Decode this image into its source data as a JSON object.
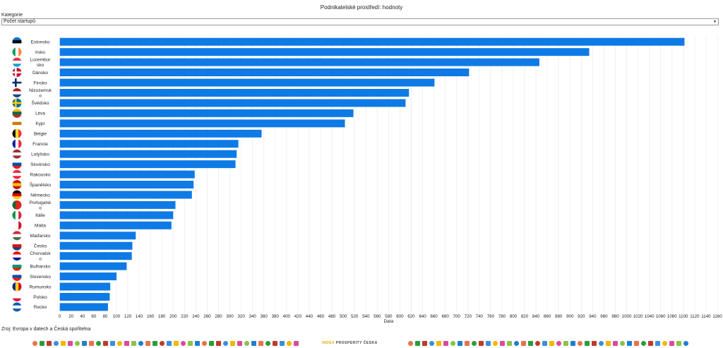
{
  "header": {
    "title": "Podnikatelské prostředí: hodnoty"
  },
  "filter": {
    "label": "Kategorie",
    "selected": "Počet startupů"
  },
  "chart_data": {
    "type": "bar",
    "orientation": "horizontal",
    "xlabel": "Data",
    "xlim": [
      0,
      1160
    ],
    "grid": true,
    "bar_color": "#0e7ae6",
    "categories": [
      "Estonsko",
      "Irsko",
      "Lucembursko",
      "Dánsko",
      "Finsko",
      "Nizozemsko",
      "Švédsko",
      "Litva",
      "Kypr",
      "Belgie",
      "Francie",
      "Lotyšsko",
      "Slovinsko",
      "Rakousko",
      "Španělsko",
      "Německo",
      "Portugalsko",
      "Itálie",
      "Malta",
      "Maďarsko",
      "Česko",
      "Chorvatsko",
      "Bulharsko",
      "Slovensko",
      "Rumunsko",
      "Polsko",
      "Recko"
    ],
    "category_labels": [
      [
        "Estonsko"
      ],
      [
        "Irsko"
      ],
      [
        "Lucembur",
        "sko"
      ],
      [
        "Dánsko"
      ],
      [
        "Finsko"
      ],
      [
        "Nizozemsk",
        "o"
      ],
      [
        "Švédsko"
      ],
      [
        "Litva"
      ],
      [
        "Kypr"
      ],
      [
        "Belgie"
      ],
      [
        "Francie"
      ],
      [
        "Lotyšsko"
      ],
      [
        "Slovinsko"
      ],
      [
        "Rakousko"
      ],
      [
        "Španělsko"
      ],
      [
        "Německo"
      ],
      [
        "Portugalsk",
        "o"
      ],
      [
        "Itálie"
      ],
      [
        "Malta"
      ],
      [
        "Maďarsko"
      ],
      [
        "Česko"
      ],
      [
        "Chorvatsk",
        "o"
      ],
      [
        "Bulharsko"
      ],
      [
        "Slovensko"
      ],
      [
        "Rumunsko"
      ],
      [
        "Polsko"
      ],
      [
        "Recko"
      ]
    ],
    "values": [
      1102,
      934,
      846,
      722,
      661,
      616,
      610,
      518,
      503,
      356,
      315,
      312,
      310,
      238,
      236,
      233,
      204,
      200,
      197,
      134,
      128,
      127,
      118,
      100,
      89,
      88,
      85
    ],
    "ticks": [
      0,
      20,
      40,
      60,
      80,
      100,
      120,
      140,
      160,
      180,
      200,
      220,
      240,
      260,
      280,
      300,
      320,
      340,
      360,
      380,
      400,
      420,
      440,
      460,
      480,
      500,
      520,
      540,
      560,
      580,
      600,
      620,
      640,
      660,
      680,
      700,
      720,
      740,
      760,
      780,
      800,
      820,
      840,
      860,
      880,
      900,
      920,
      940,
      960,
      980,
      1000,
      1020,
      1040,
      1060,
      1080,
      1100,
      1120,
      1140,
      1160
    ],
    "flags": [
      {
        "dir": "h",
        "c": [
          "#0072ce",
          "#000000",
          "#ffffff"
        ]
      },
      {
        "dir": "v",
        "c": [
          "#169b62",
          "#ffffff",
          "#ff883e"
        ]
      },
      {
        "dir": "h",
        "c": [
          "#ef3340",
          "#ffffff",
          "#00a3e0"
        ]
      },
      {
        "dir": "nordic",
        "c": [
          "#c8102e",
          "#ffffff"
        ]
      },
      {
        "dir": "nordic",
        "c": [
          "#ffffff",
          "#002f6c"
        ]
      },
      {
        "dir": "h",
        "c": [
          "#ae1c28",
          "#ffffff",
          "#21468b"
        ]
      },
      {
        "dir": "nordic",
        "c": [
          "#006aa7",
          "#fecc00"
        ]
      },
      {
        "dir": "h",
        "c": [
          "#fdb913",
          "#006a44",
          "#c1272d"
        ]
      },
      {
        "dir": "h",
        "c": [
          "#ffffff",
          "#d57800",
          "#ffffff"
        ]
      },
      {
        "dir": "v",
        "c": [
          "#000000",
          "#fdda24",
          "#ef3340"
        ]
      },
      {
        "dir": "v",
        "c": [
          "#002395",
          "#ffffff",
          "#ed2939"
        ]
      },
      {
        "dir": "h",
        "c": [
          "#9e3039",
          "#ffffff",
          "#9e3039"
        ]
      },
      {
        "dir": "h",
        "c": [
          "#ffffff",
          "#0051a0",
          "#e21b23"
        ]
      },
      {
        "dir": "h",
        "c": [
          "#ed2939",
          "#ffffff",
          "#ed2939"
        ]
      },
      {
        "dir": "h",
        "c": [
          "#c60b1e",
          "#ffc400",
          "#c60b1e"
        ]
      },
      {
        "dir": "h",
        "c": [
          "#000000",
          "#dd0000",
          "#ffce00"
        ]
      },
      {
        "dir": "v",
        "c": [
          "#046a38",
          "#da291c",
          "#da291c"
        ]
      },
      {
        "dir": "v",
        "c": [
          "#009246",
          "#ffffff",
          "#ce2b37"
        ]
      },
      {
        "dir": "v",
        "c": [
          "#ffffff",
          "#ffffff",
          "#cf142b"
        ]
      },
      {
        "dir": "h",
        "c": [
          "#ce2939",
          "#ffffff",
          "#477050"
        ]
      },
      {
        "dir": "h",
        "c": [
          "#ffffff",
          "#d7141a",
          "#11457e"
        ]
      },
      {
        "dir": "h",
        "c": [
          "#ff0000",
          "#ffffff",
          "#171796"
        ]
      },
      {
        "dir": "h",
        "c": [
          "#ffffff",
          "#00966e",
          "#d62612"
        ]
      },
      {
        "dir": "h",
        "c": [
          "#ffffff",
          "#0b4ea2",
          "#ee1c25"
        ]
      },
      {
        "dir": "v",
        "c": [
          "#002b7f",
          "#fcd116",
          "#ce1126"
        ]
      },
      {
        "dir": "h",
        "c": [
          "#ffffff",
          "#ffffff",
          "#dc143c"
        ]
      },
      {
        "dir": "h",
        "c": [
          "#0d5eaf",
          "#ffffff",
          "#0d5eaf"
        ]
      }
    ]
  },
  "footer": {
    "source": "Zroj: Evropa v datech a Česká spořitelna",
    "logo_text_a": "INDEX",
    "logo_text_b": "PROSPERITY ČESKA"
  }
}
